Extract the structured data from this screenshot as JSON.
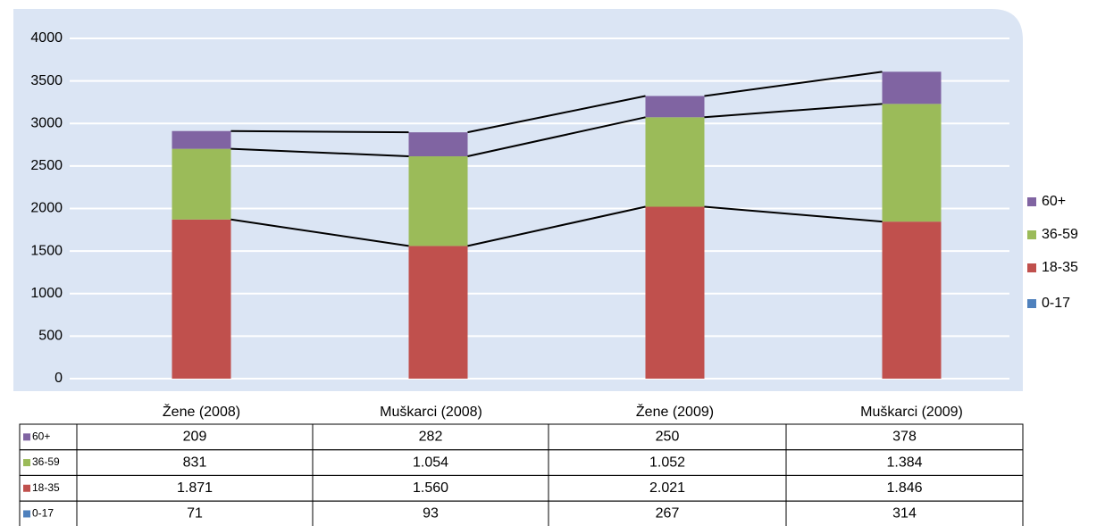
{
  "chart_data": {
    "type": "stacked_bar",
    "categories": [
      "Žene (2008)",
      "Muškarci (2008)",
      "Žene (2009)",
      "Muškarci (2009)"
    ],
    "series": [
      {
        "name": "0-17",
        "color": "#4f81bd",
        "values": [
          71,
          93,
          267,
          314
        ],
        "hidden": true
      },
      {
        "name": "18-35",
        "color": "#c0504d",
        "values": [
          1871,
          1560,
          2021,
          1846
        ],
        "value_labels": [
          "1.871",
          "1.560",
          "2.021",
          "1.846"
        ]
      },
      {
        "name": "36-59",
        "color": "#9bbb59",
        "values": [
          831,
          1054,
          1052,
          1384
        ],
        "value_labels": [
          "831",
          "1.054",
          "1.052",
          "1.384"
        ]
      },
      {
        "name": "60+",
        "color": "#8064a2",
        "values": [
          209,
          282,
          250,
          378
        ]
      }
    ],
    "ylim": [
      0,
      4000
    ],
    "yticks": [
      0,
      500,
      1000,
      1500,
      2000,
      2500,
      3000,
      3500,
      4000
    ],
    "grid": true,
    "series_lines": true,
    "legend": "right",
    "data_table": true
  }
}
